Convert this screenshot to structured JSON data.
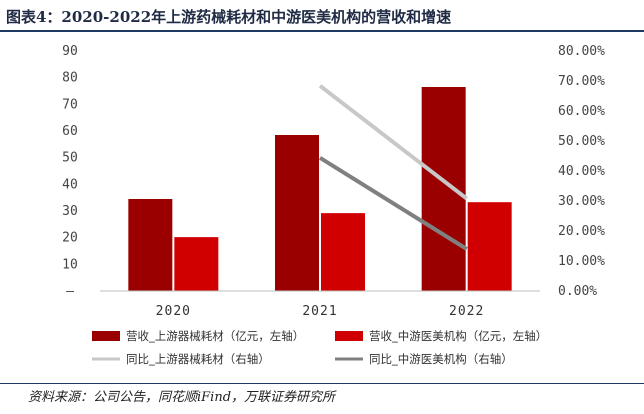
{
  "header": {
    "title": "图表4：2020-2022年上游药械耗材和中游医美机构的营收和增速"
  },
  "footer": {
    "source": "资料来源：公司公告，同花顺iFind，万联证券研究所"
  },
  "colors": {
    "upstream_revenue": "#9b0000",
    "midstream_revenue": "#d10000",
    "upstream_yoy": "#c8c8c8",
    "midstream_yoy": "#808080"
  },
  "chart_data": {
    "type": "bar",
    "categories": [
      "2020",
      "2021",
      "2022"
    ],
    "left_axis": {
      "min": 0,
      "max": 90,
      "ticks": [
        "—",
        "10",
        "20",
        "30",
        "40",
        "50",
        "60",
        "70",
        "80",
        "90"
      ]
    },
    "right_axis": {
      "min": 0,
      "max": 0.8,
      "ticks": [
        "0.00%",
        "10.00%",
        "20.00%",
        "30.00%",
        "40.00%",
        "50.00%",
        "60.00%",
        "70.00%",
        "80.00%"
      ]
    },
    "series": [
      {
        "name": "营收_上游器械耗材（亿元，左轴）",
        "type": "bar",
        "axis": "left",
        "color_key": "upstream_revenue",
        "values": [
          34.5,
          58.5,
          76.5
        ]
      },
      {
        "name": "营收_中游医美机构（亿元，左轴）",
        "type": "bar",
        "axis": "left",
        "color_key": "midstream_revenue",
        "values": [
          20.2,
          29.2,
          33.3
        ]
      },
      {
        "name": "同比_上游器械耗材（右轴）",
        "type": "line",
        "axis": "right",
        "color_key": "upstream_yoy",
        "values": [
          null,
          0.684,
          0.308
        ]
      },
      {
        "name": "同比_中游医美机构（右轴）",
        "type": "line",
        "axis": "right",
        "color_key": "midstream_yoy",
        "values": [
          null,
          0.444,
          0.14
        ]
      }
    ],
    "grid": false,
    "legend": "bottom"
  }
}
